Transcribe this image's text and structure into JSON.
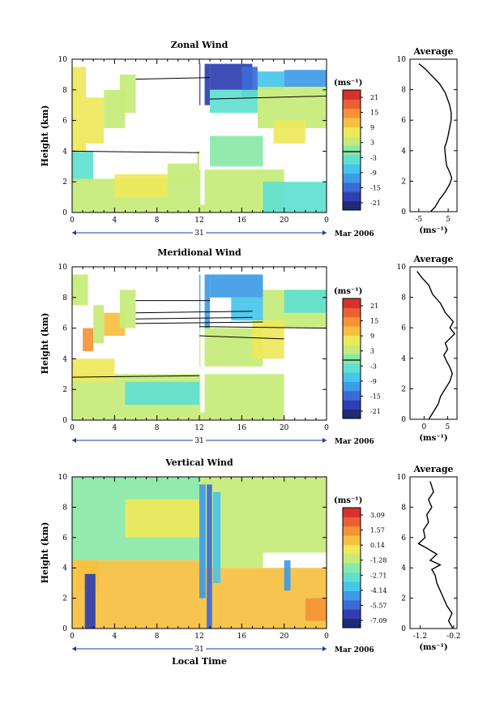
{
  "figure": {
    "date_label": "Mar 2006",
    "day_label": "31",
    "local_time_label": "Local Time"
  },
  "colorscale": [
    "#1d2a78",
    "#2f3fb0",
    "#3b6ad8",
    "#3f9ae6",
    "#45c6ec",
    "#5fe0d0",
    "#8ae8a8",
    "#c6ec78",
    "#eee85a",
    "#f6c040",
    "#f49438",
    "#ec6030",
    "#d8302a"
  ],
  "chart_data": [
    {
      "type": "heatmap",
      "title": "Zonal Wind",
      "ylabel": "Height (km)",
      "xlabel": "",
      "x_ticks": [
        "0",
        "4",
        "8",
        "12",
        "16",
        "20",
        "0"
      ],
      "x_range_hours": [
        0,
        24
      ],
      "y_ticks": [
        "0",
        "2",
        "4",
        "6",
        "8",
        "10"
      ],
      "ylim": [
        0,
        10
      ],
      "colorbar_unit": "(ms⁻¹)",
      "colorbar_ticks": [
        "21",
        "15",
        "9",
        "3",
        "-3",
        "-9",
        "-15",
        "-21"
      ],
      "colorbar_range": [
        -24,
        24
      ],
      "regions": [
        {
          "t0": 0,
          "t1": 1.3,
          "h0": 4,
          "h1": 9.5,
          "v": 8
        },
        {
          "t0": 1.3,
          "t1": 3,
          "h0": 4.5,
          "h1": 7.5,
          "v": 6
        },
        {
          "t0": 3,
          "t1": 5,
          "h0": 5.5,
          "h1": 8,
          "v": 4
        },
        {
          "t0": 4.5,
          "t1": 6,
          "h0": 6.5,
          "h1": 9,
          "v": 5
        },
        {
          "t0": 0,
          "t1": 2,
          "h0": 2,
          "h1": 4,
          "v": -2
        },
        {
          "t0": 0,
          "t1": 12,
          "h0": 0,
          "h1": 2.2,
          "v": 3
        },
        {
          "t0": 4,
          "t1": 9,
          "h0": 1,
          "h1": 2.5,
          "v": 6
        },
        {
          "t0": 9,
          "t1": 12,
          "h0": 2,
          "h1": 4,
          "v": 4
        },
        {
          "t0": 12,
          "t1": 13,
          "h0": 7,
          "h1": 9.7,
          "v": -20
        },
        {
          "t0": 13,
          "t1": 17,
          "h0": 8,
          "h1": 9.7,
          "v": -18
        },
        {
          "t0": 16,
          "t1": 17.5,
          "h0": 7.5,
          "h1": 9.5,
          "v": -15
        },
        {
          "t0": 17.5,
          "t1": 20,
          "h0": 8,
          "h1": 9.2,
          "v": -6
        },
        {
          "t0": 20,
          "t1": 24,
          "h0": 8.2,
          "h1": 9.3,
          "v": -12
        },
        {
          "t0": 13,
          "t1": 17.5,
          "h0": 6.5,
          "h1": 8,
          "v": -4
        },
        {
          "t0": 17.5,
          "t1": 24,
          "h0": 5.5,
          "h1": 8.2,
          "v": 2
        },
        {
          "t0": 19,
          "t1": 22,
          "h0": 4.5,
          "h1": 6,
          "v": 6
        },
        {
          "t0": 12,
          "t1": 20,
          "h0": 0,
          "h1": 2.8,
          "v": 2
        },
        {
          "t0": 18,
          "t1": 24,
          "h0": 0,
          "h1": 2,
          "v": -2
        },
        {
          "t0": 13,
          "t1": 18,
          "h0": 3,
          "h1": 5,
          "v": 0
        }
      ],
      "zero_lines": [
        {
          "t0": 6,
          "h0": 8.7,
          "t1": 13,
          "h1": 8.8
        },
        {
          "t0": 0,
          "h0": 4,
          "t1": 12,
          "h1": 3.9
        },
        {
          "t0": 13,
          "h0": 7.4,
          "t1": 24,
          "h1": 7.6
        }
      ]
    },
    {
      "type": "heatmap",
      "title": "Meridional Wind",
      "ylabel": "Height (km)",
      "xlabel": "",
      "x_ticks": [
        "0",
        "4",
        "8",
        "12",
        "16",
        "20",
        "0"
      ],
      "x_range_hours": [
        0,
        24
      ],
      "y_ticks": [
        "0",
        "2",
        "4",
        "6",
        "8",
        "10"
      ],
      "ylim": [
        0,
        10
      ],
      "colorbar_unit": "(ms⁻¹)",
      "colorbar_ticks": [
        "21",
        "15",
        "9",
        "3",
        "-3",
        "-9",
        "-15",
        "-21"
      ],
      "colorbar_range": [
        -24,
        24
      ],
      "regions": [
        {
          "t0": 0,
          "t1": 1.5,
          "h0": 7.5,
          "h1": 9.5,
          "v": 2
        },
        {
          "t0": 1,
          "t1": 2,
          "h0": 4.5,
          "h1": 6,
          "v": 14
        },
        {
          "t0": 2,
          "t1": 3,
          "h0": 5,
          "h1": 7.5,
          "v": 4
        },
        {
          "t0": 3,
          "t1": 5,
          "h0": 5.5,
          "h1": 7,
          "v": 10
        },
        {
          "t0": 4.5,
          "t1": 6,
          "h0": 6,
          "h1": 8.5,
          "v": 3
        },
        {
          "t0": 0,
          "t1": 12,
          "h0": 0,
          "h1": 3,
          "v": 4
        },
        {
          "t0": 0,
          "t1": 4,
          "h0": 2.5,
          "h1": 4,
          "v": 7
        },
        {
          "t0": 5,
          "t1": 12,
          "h0": 1,
          "h1": 2.5,
          "v": -3
        },
        {
          "t0": 12,
          "t1": 13,
          "h0": 6,
          "h1": 9.5,
          "v": -10
        },
        {
          "t0": 13,
          "t1": 18,
          "h0": 8,
          "h1": 9.5,
          "v": -12
        },
        {
          "t0": 15,
          "t1": 18,
          "h0": 6.5,
          "h1": 8,
          "v": -8
        },
        {
          "t0": 12,
          "t1": 18,
          "h0": 3.5,
          "h1": 6,
          "v": 3
        },
        {
          "t0": 18,
          "t1": 24,
          "h0": 6,
          "h1": 8.5,
          "v": 5
        },
        {
          "t0": 20,
          "t1": 24,
          "h0": 7,
          "h1": 8.5,
          "v": -2
        },
        {
          "t0": 17,
          "t1": 20,
          "h0": 4,
          "h1": 6.5,
          "v": 7
        },
        {
          "t0": 12,
          "t1": 20,
          "h0": 0,
          "h1": 3,
          "v": 2
        }
      ],
      "zero_lines": [
        {
          "t0": 6,
          "h0": 7.8,
          "t1": 13,
          "h1": 7.8
        },
        {
          "t0": 6,
          "h0": 7,
          "t1": 17,
          "h1": 7.1
        },
        {
          "t0": 6,
          "h0": 6.6,
          "t1": 17,
          "h1": 6.7
        },
        {
          "t0": 6,
          "h0": 6.3,
          "t1": 18,
          "h1": 6.4
        },
        {
          "t0": 12,
          "h0": 6.1,
          "t1": 24,
          "h1": 6.0
        },
        {
          "t0": 12,
          "h0": 5.5,
          "t1": 20,
          "h1": 5.3
        },
        {
          "t0": 0,
          "h0": 2.8,
          "t1": 12,
          "h1": 2.9
        }
      ]
    },
    {
      "type": "heatmap",
      "title": "Vertical Wind",
      "ylabel": "Height (km)",
      "xlabel": "Local Time",
      "x_ticks": [
        "0",
        "4",
        "8",
        "12",
        "16",
        "20",
        "0"
      ],
      "x_range_hours": [
        0,
        24
      ],
      "y_ticks": [
        "0",
        "2",
        "4",
        "6",
        "8",
        "10"
      ],
      "ylim": [
        0,
        10
      ],
      "colorbar_unit": "(ms⁻¹)",
      "colorbar_ticks": [
        "3.09",
        "1.57",
        "0.14",
        "-1.28",
        "-2.71",
        "-4.14",
        "-5.57",
        "-7.09"
      ],
      "colorbar_range": [
        -8,
        4
      ],
      "regions": [
        {
          "t0": 0,
          "t1": 12,
          "h0": 4.5,
          "h1": 10,
          "v": -1.6
        },
        {
          "t0": 5,
          "t1": 12,
          "h0": 6,
          "h1": 8.5,
          "v": -0.4
        },
        {
          "t0": 0,
          "t1": 12,
          "h0": 0,
          "h1": 4.5,
          "v": 0.6
        },
        {
          "t0": 0.5,
          "t1": 2.5,
          "h0": 2.5,
          "h1": 4.5,
          "v": 1.2
        },
        {
          "t0": 1.2,
          "t1": 2.2,
          "h0": 0,
          "h1": 3.6,
          "v": -7
        },
        {
          "t0": 12,
          "t1": 18,
          "h0": 4,
          "h1": 10,
          "v": -1.4
        },
        {
          "t0": 18,
          "t1": 24,
          "h0": 5,
          "h1": 10,
          "v": -1.0
        },
        {
          "t0": 12,
          "t1": 24,
          "h0": 0,
          "h1": 4,
          "v": 0.7
        },
        {
          "t0": 22,
          "t1": 24,
          "h0": 0.5,
          "h1": 2,
          "v": 1.8
        },
        {
          "t0": 12,
          "t1": 12.6,
          "h0": 2,
          "h1": 9.5,
          "v": -4.5
        },
        {
          "t0": 12.7,
          "t1": 13.2,
          "h0": 0,
          "h1": 9.5,
          "v": -5.5
        },
        {
          "t0": 13.3,
          "t1": 14,
          "h0": 3,
          "h1": 9,
          "v": -3.5
        },
        {
          "t0": 20,
          "t1": 20.6,
          "h0": 2.5,
          "h1": 4.5,
          "v": -5
        }
      ],
      "zero_lines": []
    },
    {
      "type": "line",
      "title": "Average",
      "xlabel": "(ms⁻¹)",
      "ylabel": "",
      "x_ticks": [
        "-5",
        "5"
      ],
      "xlim": [
        -8,
        8
      ],
      "y_ticks": [
        "0",
        "2",
        "4",
        "6",
        "8",
        "10"
      ],
      "ylim": [
        0,
        10
      ],
      "series": [
        {
          "x": [
            -1,
            0.5,
            2,
            4,
            5.5,
            6.2,
            5.5,
            4.5,
            4.2,
            4,
            3.8,
            4.5,
            5,
            5.5,
            6,
            6,
            5.5,
            4,
            2,
            -1,
            -3,
            -5
          ],
          "y": [
            0,
            0.3,
            0.8,
            1.3,
            1.8,
            2.2,
            2.6,
            3,
            3.4,
            3.8,
            4.2,
            4.6,
            5,
            5.5,
            6,
            6.5,
            7,
            7.8,
            8.4,
            9,
            9.4,
            9.7
          ]
        }
      ]
    },
    {
      "type": "line",
      "title": "Average",
      "xlabel": "(ms⁻¹)",
      "ylabel": "",
      "x_ticks": [
        "0",
        "5"
      ],
      "xlim": [
        -3,
        7
      ],
      "y_ticks": [
        "0",
        "2",
        "4",
        "6",
        "8",
        "10"
      ],
      "ylim": [
        0,
        10
      ],
      "series": [
        {
          "x": [
            1,
            2,
            3,
            3.5,
            4.5,
            5.5,
            6,
            5.5,
            4.8,
            4.2,
            5,
            4.5,
            5.5,
            6.5,
            5.5,
            6.2,
            4.5,
            3.5,
            1.8,
            1,
            -0.5,
            -1.5
          ],
          "y": [
            0,
            0.5,
            1,
            1.5,
            2,
            2.5,
            3,
            3.4,
            3.8,
            4.2,
            4.6,
            5,
            5.3,
            5.6,
            6,
            6.4,
            7,
            7.6,
            8.2,
            8.8,
            9.3,
            9.7
          ]
        }
      ]
    },
    {
      "type": "line",
      "title": "Average",
      "xlabel": "(ms⁻¹)",
      "ylabel": "",
      "x_ticks": [
        "-1.2",
        "-0.2"
      ],
      "xlim": [
        -1.5,
        -0.1
      ],
      "y_ticks": [
        "0",
        "2",
        "4",
        "6",
        "8",
        "10"
      ],
      "ylim": [
        0,
        10
      ],
      "series": [
        {
          "x": [
            -0.22,
            -0.35,
            -0.25,
            -0.4,
            -0.5,
            -0.6,
            -0.7,
            -0.75,
            -0.85,
            -0.6,
            -0.9,
            -0.7,
            -1.0,
            -1.25,
            -1.05,
            -1.1,
            -0.95,
            -1.0,
            -0.85,
            -0.95,
            -0.8,
            -0.9
          ],
          "y": [
            0,
            0.5,
            1,
            1.5,
            2,
            2.5,
            3,
            3.5,
            3.9,
            4.2,
            4.5,
            4.9,
            5.3,
            5.6,
            6,
            6.5,
            7,
            7.5,
            8,
            8.5,
            9,
            9.7
          ]
        }
      ]
    }
  ]
}
